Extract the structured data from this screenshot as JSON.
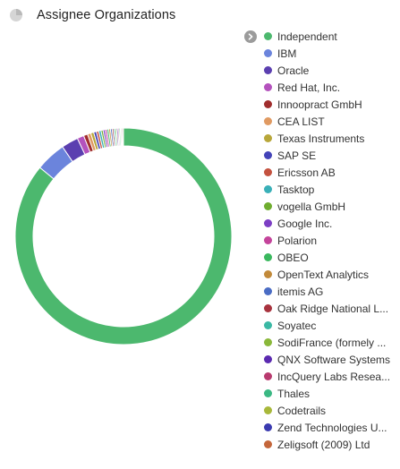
{
  "header": {
    "title": "Assignee Organizations",
    "icon": "pie-chart-icon"
  },
  "legend": {
    "toggle_icon": "chevron-right-icon"
  },
  "chart_data": {
    "type": "pie",
    "donut": true,
    "legend_position": "right",
    "labels": [
      "Independent",
      "IBM",
      "Oracle",
      "Red Hat, Inc.",
      "Innoopract GmbH",
      "CEA LIST",
      "Texas Instruments",
      "SAP SE",
      "Ericsson AB",
      "Tasktop",
      "vogella GmbH",
      "Google Inc.",
      "Polarion",
      "OBEO",
      "OpenText Analytics",
      "itemis AG",
      "Oak Ridge National Laboratory",
      "Soyatec",
      "SodiFrance (formerly Mia-Software)",
      "QNX Software Systems",
      "IncQuery Labs Research",
      "Thales",
      "Codetrails",
      "Zend Technologies Ltd.",
      "Zeligsoft (2009) Ltd"
    ],
    "values": [
      85.5,
      4.5,
      2.5,
      1.0,
      0.6,
      0.5,
      0.45,
      0.4,
      0.35,
      0.35,
      0.3,
      0.3,
      0.28,
      0.27,
      0.25,
      0.25,
      0.23,
      0.22,
      0.2,
      0.2,
      0.18,
      0.18,
      0.16,
      0.15,
      0.15
    ],
    "colors": [
      "#4cb86e",
      "#6b84dc",
      "#5b3fb0",
      "#b452bd",
      "#a02d2d",
      "#e09a62",
      "#b8a73a",
      "#4343b8",
      "#c4523f",
      "#3ab0b8",
      "#6fad2f",
      "#7c3ec4",
      "#c4449b",
      "#3ab85e",
      "#c28a3a",
      "#4a6cc4",
      "#a8333e",
      "#3ab8a4",
      "#8ab83a",
      "#5b2ab0",
      "#b83a6e",
      "#3ab883",
      "#a8b83a",
      "#3a3ab0",
      "#c4663a"
    ],
    "legend_display": [
      "Independent",
      "IBM",
      "Oracle",
      "Red Hat, Inc.",
      "Innoopract GmbH",
      "CEA LIST",
      "Texas Instruments",
      "SAP SE",
      "Ericsson AB",
      "Tasktop",
      "vogella GmbH",
      "Google Inc.",
      "Polarion",
      "OBEO",
      "OpenText Analytics",
      "itemis AG",
      "Oak Ridge National L...",
      "Soyatec",
      "SodiFrance (formely ...",
      "QNX Software Systems",
      "IncQuery Labs Resea...",
      "Thales",
      "Codetrails",
      "Zend Technologies U...",
      "Zeligsoft (2009) Ltd"
    ]
  }
}
